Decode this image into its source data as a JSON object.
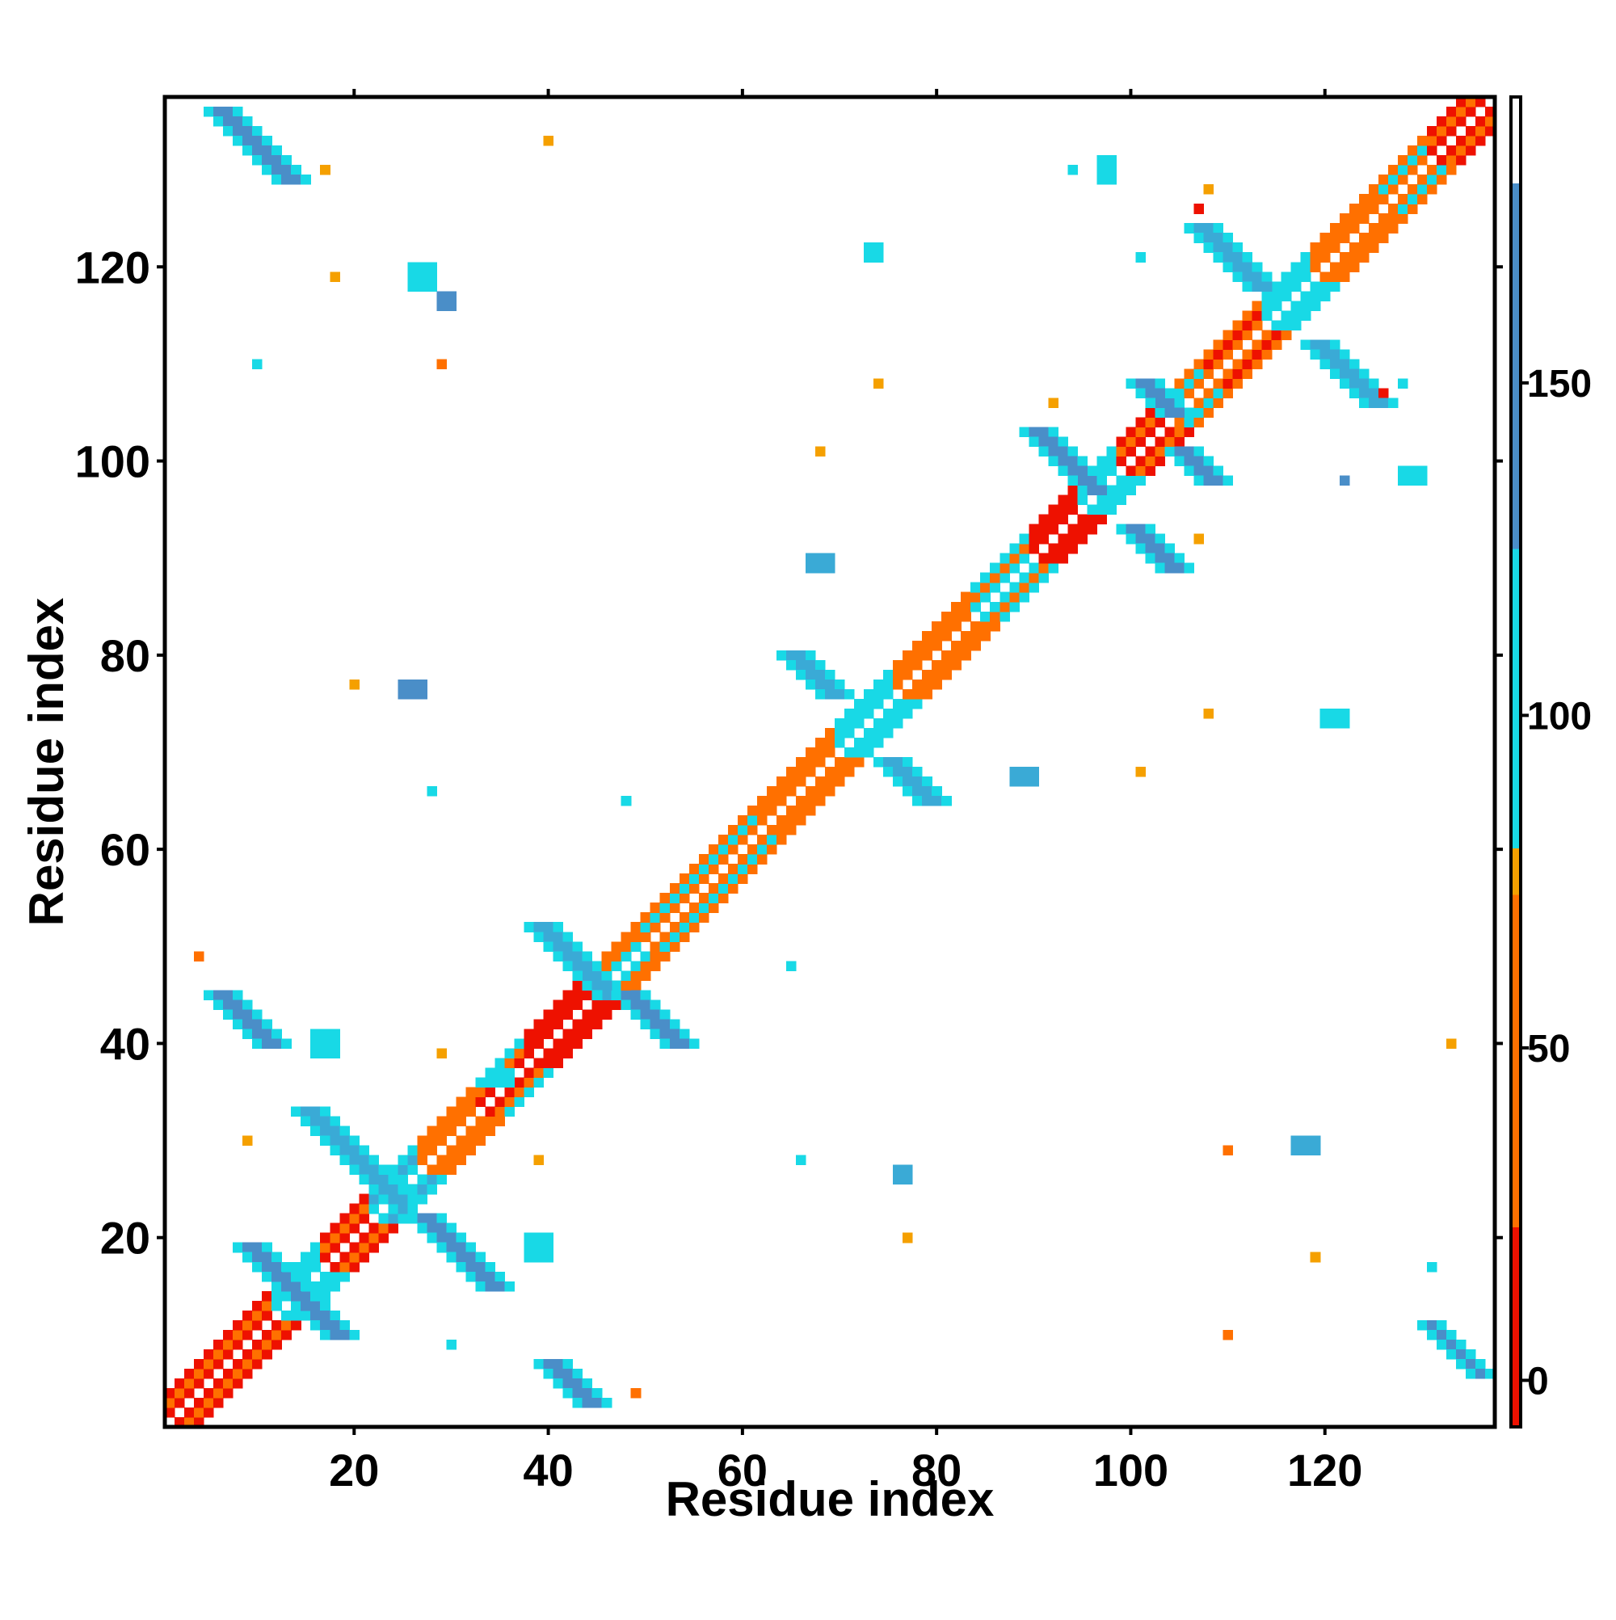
{
  "chart_data": {
    "type": "heatmap",
    "title": "",
    "xlabel": "Residue index",
    "ylabel": "Residue index",
    "xlim": [
      1,
      137
    ],
    "ylim": [
      1,
      137
    ],
    "x_ticks": [
      20,
      40,
      60,
      80,
      100,
      120
    ],
    "y_ticks": [
      20,
      40,
      60,
      80,
      100,
      120
    ],
    "colorbar": {
      "ticks": [
        0,
        50,
        100,
        150
      ],
      "range": [
        -7,
        193
      ],
      "bins": [
        {
          "from": -7,
          "to": 23,
          "color": "#ee1100"
        },
        {
          "from": 23,
          "to": 73,
          "color": "#ff7000"
        },
        {
          "from": 73,
          "to": 80,
          "color": "#f5a000"
        },
        {
          "from": 80,
          "to": 125,
          "color": "#18d9e6"
        },
        {
          "from": 125,
          "to": 180,
          "color": "#4a8ec8"
        },
        {
          "from": 180,
          "to": 193,
          "color": "#ffffff"
        }
      ]
    },
    "colors": {
      "red": "#ee1100",
      "orange": "#ff7000",
      "amber": "#f5a000",
      "cyan": "#18d9e6",
      "skyblue": "#3aaad6",
      "steelblue": "#4a8ec8"
    },
    "diagonal_bands": [
      {
        "from": 1,
        "to": 12,
        "d1": "red",
        "d2": "orange",
        "d3": "red"
      },
      {
        "from": 12,
        "to": 17,
        "d1": "cyan",
        "d2": "cyan",
        "d3": "cyan"
      },
      {
        "from": 17,
        "to": 22,
        "d1": "red",
        "d2": "orange",
        "d3": "red"
      },
      {
        "from": 22,
        "to": 27,
        "d1": "cyan",
        "d2": "skyblue",
        "d3": "cyan"
      },
      {
        "from": 27,
        "to": 33,
        "d1": "orange",
        "d2": "orange",
        "d3": "orange"
      },
      {
        "from": 33,
        "to": 38,
        "d1": "red",
        "d2": "orange",
        "d3": "cyan"
      },
      {
        "from": 38,
        "to": 46,
        "d1": "red",
        "d2": "red",
        "d3": "red"
      },
      {
        "from": 46,
        "to": 50,
        "d1": "cyan",
        "d2": "orange",
        "d3": "orange"
      },
      {
        "from": 50,
        "to": 62,
        "d1": "orange",
        "d2": "cyan",
        "d3": "orange"
      },
      {
        "from": 62,
        "to": 70,
        "d1": "orange",
        "d2": "orange",
        "d3": "orange"
      },
      {
        "from": 70,
        "to": 76,
        "d1": "cyan",
        "d2": "cyan",
        "d3": "cyan"
      },
      {
        "from": 76,
        "to": 84,
        "d1": "orange",
        "d2": "orange",
        "d3": "orange"
      },
      {
        "from": 84,
        "to": 90,
        "d1": "cyan",
        "d2": "orange",
        "d3": "cyan"
      },
      {
        "from": 90,
        "to": 95,
        "d1": "red",
        "d2": "red",
        "d3": "red"
      },
      {
        "from": 95,
        "to": 99,
        "d1": "cyan",
        "d2": "cyan",
        "d3": "cyan"
      },
      {
        "from": 99,
        "to": 104,
        "d1": "red",
        "d2": "orange",
        "d3": "red"
      },
      {
        "from": 104,
        "to": 108,
        "d1": "orange",
        "d2": "cyan",
        "d3": "orange"
      },
      {
        "from": 108,
        "to": 114,
        "d1": "orange",
        "d2": "red",
        "d3": "orange"
      },
      {
        "from": 114,
        "to": 119,
        "d1": "cyan",
        "d2": "cyan",
        "d3": "cyan"
      },
      {
        "from": 119,
        "to": 126,
        "d1": "orange",
        "d2": "orange",
        "d3": "orange"
      },
      {
        "from": 126,
        "to": 131,
        "d1": "orange",
        "d2": "cyan",
        "d3": "orange"
      },
      {
        "from": 131,
        "to": 138,
        "d1": "red",
        "d2": "orange",
        "d3": "red"
      }
    ],
    "strands": [
      {
        "x0": 5,
        "y0": 136,
        "dx": 1,
        "dy": -1,
        "len": 8,
        "width": 4,
        "edge": "cyan",
        "core": "steelblue"
      },
      {
        "x0": 5,
        "y0": 45,
        "dx": 1,
        "dy": -1,
        "len": 6,
        "width": 4,
        "edge": "cyan",
        "core": "steelblue"
      },
      {
        "x0": 8,
        "y0": 19,
        "dx": 1,
        "dy": -1,
        "len": 10,
        "width": 4,
        "edge": "cyan",
        "core": "steelblue"
      },
      {
        "x0": 14,
        "y0": 33,
        "dx": 1,
        "dy": -1,
        "len": 10,
        "width": 4,
        "edge": "cyan",
        "core": "skyblue"
      },
      {
        "x0": 26,
        "y0": 22,
        "dx": 1,
        "dy": -1,
        "len": 8,
        "width": 4,
        "edge": "cyan",
        "core": "steelblue"
      },
      {
        "x0": 38,
        "y0": 52,
        "dx": 1,
        "dy": -1,
        "len": 8,
        "width": 4,
        "edge": "cyan",
        "core": "skyblue"
      },
      {
        "x0": 47,
        "y0": 45,
        "dx": 1,
        "dy": -1,
        "len": 6,
        "width": 4,
        "edge": "cyan",
        "core": "steelblue"
      },
      {
        "x0": 39,
        "y0": 7,
        "dx": 1,
        "dy": -1,
        "len": 5,
        "width": 4,
        "edge": "cyan",
        "core": "steelblue"
      },
      {
        "x0": 64,
        "y0": 80,
        "dx": 1,
        "dy": -1,
        "len": 5,
        "width": 4,
        "edge": "cyan",
        "core": "skyblue"
      },
      {
        "x0": 74,
        "y0": 69,
        "dx": 1,
        "dy": -1,
        "len": 5,
        "width": 4,
        "edge": "cyan",
        "core": "skyblue"
      },
      {
        "x0": 89,
        "y0": 103,
        "dx": 1,
        "dy": -1,
        "len": 7,
        "width": 4,
        "edge": "cyan",
        "core": "steelblue"
      },
      {
        "x0": 99,
        "y0": 93,
        "dx": 1,
        "dy": -1,
        "len": 5,
        "width": 4,
        "edge": "cyan",
        "core": "steelblue"
      },
      {
        "x0": 100,
        "y0": 108,
        "dx": 1,
        "dy": -1,
        "len": 4,
        "width": 4,
        "edge": "cyan",
        "core": "steelblue"
      },
      {
        "x0": 104,
        "y0": 101,
        "dx": 1,
        "dy": -1,
        "len": 4,
        "width": 4,
        "edge": "cyan",
        "core": "steelblue"
      },
      {
        "x0": 106,
        "y0": 124,
        "dx": 1,
        "dy": -1,
        "len": 7,
        "width": 4,
        "edge": "cyan",
        "core": "skyblue"
      },
      {
        "x0": 118,
        "y0": 112,
        "dx": 1,
        "dy": -1,
        "len": 7,
        "width": 4,
        "edge": "cyan",
        "core": "skyblue"
      },
      {
        "x0": 130,
        "y0": 11,
        "dx": 1,
        "dy": -1,
        "len": 6,
        "width": 3,
        "edge": "cyan",
        "core": "steelblue"
      }
    ],
    "patches": [
      {
        "x": 16,
        "y": 39,
        "w": 3,
        "h": 3,
        "color": "cyan"
      },
      {
        "x": 26,
        "y": 118,
        "w": 3,
        "h": 3,
        "color": "cyan"
      },
      {
        "x": 29,
        "y": 116,
        "w": 2,
        "h": 2,
        "color": "steelblue"
      },
      {
        "x": 25,
        "y": 76,
        "w": 3,
        "h": 2,
        "color": "steelblue"
      },
      {
        "x": 38,
        "y": 18,
        "w": 3,
        "h": 3,
        "color": "cyan"
      },
      {
        "x": 34,
        "y": 36,
        "w": 3,
        "h": 2,
        "color": "cyan"
      },
      {
        "x": 73,
        "y": 121,
        "w": 2,
        "h": 2,
        "color": "cyan"
      },
      {
        "x": 67,
        "y": 89,
        "w": 3,
        "h": 2,
        "color": "skyblue"
      },
      {
        "x": 88,
        "y": 67,
        "w": 3,
        "h": 2,
        "color": "skyblue"
      },
      {
        "x": 97,
        "y": 129,
        "w": 2,
        "h": 3,
        "color": "cyan"
      },
      {
        "x": 128,
        "y": 98,
        "w": 3,
        "h": 2,
        "color": "cyan"
      },
      {
        "x": 120,
        "y": 73,
        "w": 3,
        "h": 2,
        "color": "cyan"
      },
      {
        "x": 117,
        "y": 29,
        "w": 3,
        "h": 2,
        "color": "skyblue"
      },
      {
        "x": 76,
        "y": 26,
        "w": 2,
        "h": 2,
        "color": "skyblue"
      }
    ],
    "points": [
      {
        "x": 40,
        "y": 133,
        "color": "amber"
      },
      {
        "x": 17,
        "y": 130,
        "color": "amber"
      },
      {
        "x": 18,
        "y": 119,
        "color": "amber"
      },
      {
        "x": 10,
        "y": 110,
        "color": "cyan"
      },
      {
        "x": 29,
        "y": 110,
        "color": "orange"
      },
      {
        "x": 4,
        "y": 49,
        "color": "orange"
      },
      {
        "x": 29,
        "y": 39,
        "color": "amber"
      },
      {
        "x": 20,
        "y": 77,
        "color": "amber"
      },
      {
        "x": 28,
        "y": 66,
        "color": "cyan"
      },
      {
        "x": 48,
        "y": 65,
        "color": "cyan"
      },
      {
        "x": 65,
        "y": 48,
        "color": "cyan"
      },
      {
        "x": 68,
        "y": 101,
        "color": "amber"
      },
      {
        "x": 74,
        "y": 108,
        "color": "amber"
      },
      {
        "x": 92,
        "y": 106,
        "color": "amber"
      },
      {
        "x": 101,
        "y": 68,
        "color": "amber"
      },
      {
        "x": 108,
        "y": 74,
        "color": "amber"
      },
      {
        "x": 110,
        "y": 29,
        "color": "orange"
      },
      {
        "x": 110,
        "y": 10,
        "color": "orange"
      },
      {
        "x": 119,
        "y": 18,
        "color": "amber"
      },
      {
        "x": 133,
        "y": 40,
        "color": "amber"
      },
      {
        "x": 131,
        "y": 17,
        "color": "cyan"
      },
      {
        "x": 77,
        "y": 20,
        "color": "amber"
      },
      {
        "x": 66,
        "y": 28,
        "color": "cyan"
      },
      {
        "x": 39,
        "y": 28,
        "color": "amber"
      },
      {
        "x": 49,
        "y": 4,
        "color": "orange"
      },
      {
        "x": 9,
        "y": 30,
        "color": "amber"
      },
      {
        "x": 30,
        "y": 9,
        "color": "cyan"
      },
      {
        "x": 108,
        "y": 128,
        "color": "amber"
      },
      {
        "x": 107,
        "y": 126,
        "color": "red"
      },
      {
        "x": 126,
        "y": 107,
        "color": "red"
      },
      {
        "x": 128,
        "y": 108,
        "color": "cyan"
      },
      {
        "x": 107,
        "y": 92,
        "color": "amber"
      },
      {
        "x": 122,
        "y": 98,
        "color": "steelblue"
      },
      {
        "x": 94,
        "y": 130,
        "color": "cyan"
      },
      {
        "x": 101,
        "y": 121,
        "color": "cyan"
      }
    ]
  }
}
